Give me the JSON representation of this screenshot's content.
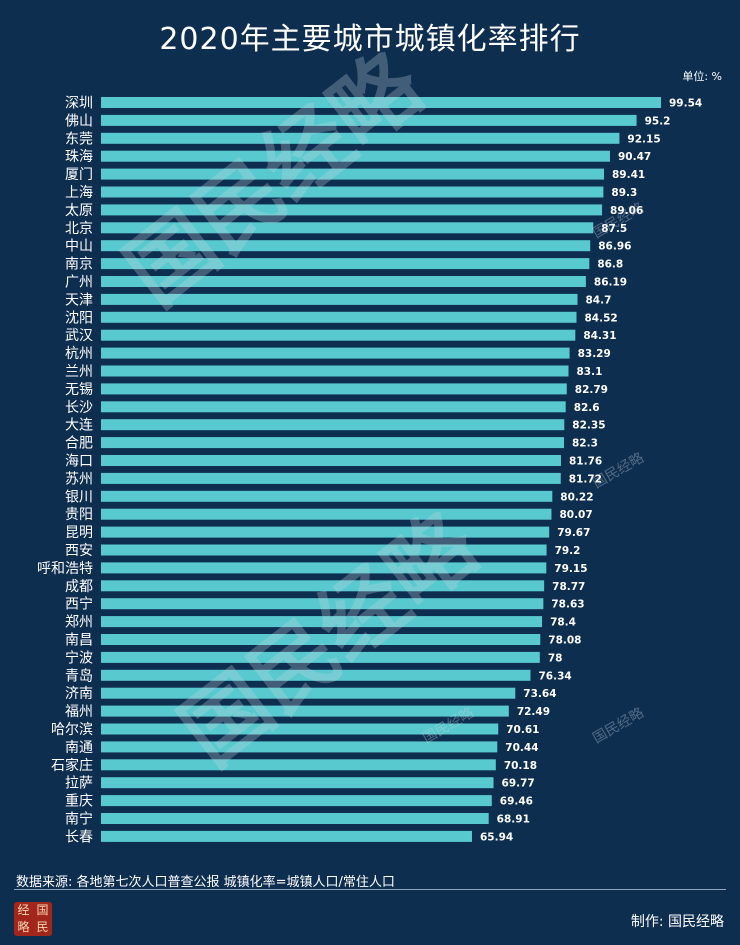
{
  "title": "2020年主要城市城镇化率排行",
  "unit_label": "单位: %",
  "source_note": "数据来源: 各地第七次人口普查公报  城镇化率=城镇人口/常住人口",
  "maker": "制作: 国民经略",
  "logo_chars": [
    "经",
    "国",
    "略",
    "民"
  ],
  "watermark_text": "国民经略",
  "colors": {
    "background": "#0e2e50",
    "bar": "#58c9ce",
    "text": "#ffffff"
  },
  "chart_data": {
    "type": "bar",
    "orientation": "horizontal",
    "unit": "%",
    "xlim": [
      0,
      100
    ],
    "grid": false,
    "categories": [
      "深圳",
      "佛山",
      "东莞",
      "珠海",
      "厦门",
      "上海",
      "太原",
      "北京",
      "中山",
      "南京",
      "广州",
      "天津",
      "沈阳",
      "武汉",
      "杭州",
      "兰州",
      "无锡",
      "长沙",
      "大连",
      "合肥",
      "海口",
      "苏州",
      "银川",
      "贵阳",
      "昆明",
      "西安",
      "呼和浩特",
      "成都",
      "西宁",
      "郑州",
      "南昌",
      "宁波",
      "青岛",
      "济南",
      "福州",
      "哈尔滨",
      "南通",
      "石家庄",
      "拉萨",
      "重庆",
      "南宁",
      "长春"
    ],
    "values": [
      99.54,
      95.2,
      92.15,
      90.47,
      89.41,
      89.3,
      89.06,
      87.5,
      86.96,
      86.8,
      86.19,
      84.7,
      84.52,
      84.31,
      83.29,
      83.1,
      82.79,
      82.6,
      82.35,
      82.3,
      81.76,
      81.72,
      80.22,
      80.07,
      79.67,
      79.2,
      79.15,
      78.77,
      78.63,
      78.4,
      78.08,
      78,
      76.34,
      73.64,
      72.49,
      70.61,
      70.44,
      70.18,
      69.77,
      69.46,
      68.91,
      65.94
    ],
    "value_labels": [
      "99.54",
      "95.2",
      "92.15",
      "90.47",
      "89.41",
      "89.3",
      "89.06",
      "87.5",
      "86.96",
      "86.8",
      "86.19",
      "84.7",
      "84.52",
      "84.31",
      "83.29",
      "83.1",
      "82.79",
      "82.6",
      "82.35",
      "82.3",
      "81.76",
      "81.72",
      "80.22",
      "80.07",
      "79.67",
      "79.2",
      "79.15",
      "78.77",
      "78.63",
      "78.4",
      "78.08",
      "78",
      "76.34",
      "73.64",
      "72.49",
      "70.61",
      "70.44",
      "70.18",
      "69.77",
      "69.46",
      "68.91",
      "65.94"
    ]
  }
}
